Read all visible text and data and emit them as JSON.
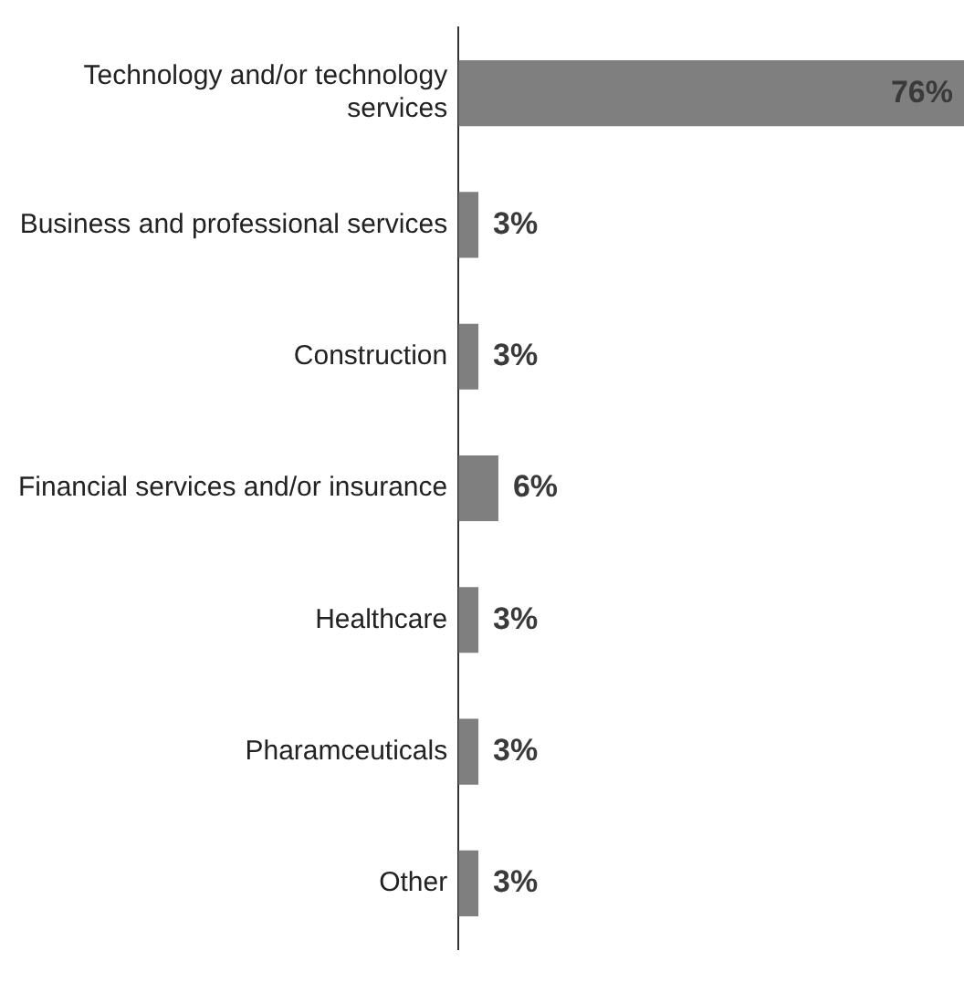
{
  "chart_data": {
    "type": "bar",
    "orientation": "horizontal",
    "categories": [
      "Technology and/or technology services",
      "Business and professional services",
      "Construction",
      "Financial services and/or insurance",
      "Healthcare",
      "Pharamceuticals",
      "Other"
    ],
    "values": [
      76,
      3,
      3,
      6,
      3,
      3,
      3
    ],
    "value_labels": [
      "76%",
      "3%",
      "3%",
      "6%",
      "3%",
      "3%",
      "3%"
    ],
    "color": "#7f7f7f"
  }
}
